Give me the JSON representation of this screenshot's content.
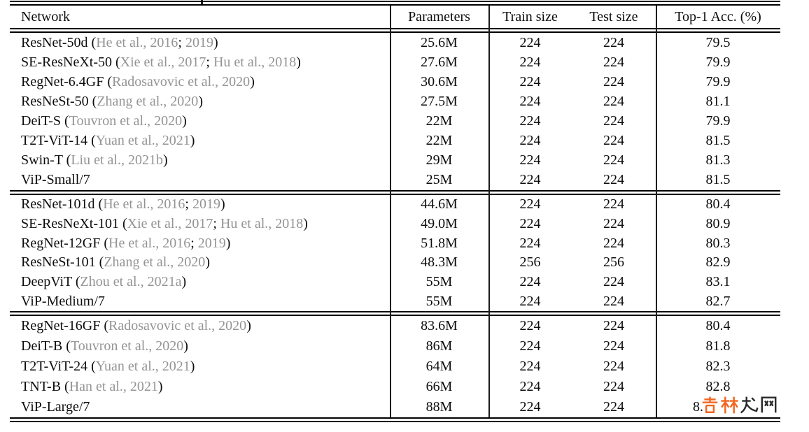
{
  "table": {
    "header": {
      "network": "Network",
      "parameters": "Parameters",
      "train": "Train size",
      "test": "Test size",
      "acc": "Top-1 Acc. (%)"
    },
    "groups": [
      {
        "rows": [
          {
            "name": "ResNet-50d",
            "citation": "He et al., 2016; 2019",
            "params": "25.6M",
            "train": "224",
            "test": "224",
            "acc": "79.5"
          },
          {
            "name": "SE-ResNeXt-50",
            "citation": "Xie et al., 2017; Hu et al., 2018",
            "params": "27.6M",
            "train": "224",
            "test": "224",
            "acc": "79.9"
          },
          {
            "name": "RegNet-6.4GF",
            "citation": "Radosavovic et al., 2020",
            "params": "30.6M",
            "train": "224",
            "test": "224",
            "acc": "79.9"
          },
          {
            "name": "ResNeSt-50",
            "citation": "Zhang et al., 2020",
            "params": "27.5M",
            "train": "224",
            "test": "224",
            "acc": "81.1"
          },
          {
            "name": "DeiT-S",
            "citation": "Touvron et al., 2020",
            "params": "22M",
            "train": "224",
            "test": "224",
            "acc": "79.9"
          },
          {
            "name": "T2T-ViT-14",
            "citation": "Yuan et al., 2021",
            "params": "22M",
            "train": "224",
            "test": "224",
            "acc": "81.5"
          },
          {
            "name": "Swin-T",
            "citation": "Liu et al., 2021b",
            "params": "29M",
            "train": "224",
            "test": "224",
            "acc": "81.3"
          },
          {
            "name": "ViP-Small/7",
            "citation": null,
            "params": "25M",
            "train": "224",
            "test": "224",
            "acc": "81.5"
          }
        ]
      },
      {
        "rows": [
          {
            "name": "ResNet-101d",
            "citation": "He et al., 2016; 2019",
            "params": "44.6M",
            "train": "224",
            "test": "224",
            "acc": "80.4"
          },
          {
            "name": "SE-ResNeXt-101",
            "citation": "Xie et al., 2017; Hu et al., 2018",
            "params": "49.0M",
            "train": "224",
            "test": "224",
            "acc": "80.9"
          },
          {
            "name": "RegNet-12GF",
            "citation": "He et al., 2016; 2019",
            "params": "51.8M",
            "train": "224",
            "test": "224",
            "acc": "80.3"
          },
          {
            "name": "ResNeSt-101",
            "citation": "Zhang et al., 2020",
            "params": "48.3M",
            "train": "256",
            "test": "256",
            "acc": "82.9"
          },
          {
            "name": "DeepViT",
            "citation": "Zhou et al., 2021a",
            "params": "55M",
            "train": "224",
            "test": "224",
            "acc": "83.1"
          },
          {
            "name": "ViP-Medium/7",
            "citation": null,
            "params": "55M",
            "train": "224",
            "test": "224",
            "acc": "82.7"
          }
        ]
      },
      {
        "rows": [
          {
            "name": "RegNet-16GF",
            "citation": "Radosavovic et al., 2020",
            "params": "83.6M",
            "train": "224",
            "test": "224",
            "acc": "80.4"
          },
          {
            "name": "DeiT-B",
            "citation": "Touvron et al., 2020",
            "params": "86M",
            "train": "224",
            "test": "224",
            "acc": "81.8"
          },
          {
            "name": "T2T-ViT-24",
            "citation": "Yuan et al., 2021",
            "params": "64M",
            "train": "224",
            "test": "224",
            "acc": "82.3"
          },
          {
            "name": "TNT-B",
            "citation": "Han et al., 2021",
            "params": "66M",
            "train": "224",
            "test": "224",
            "acc": "82.8"
          },
          {
            "name": "ViP-Large/7",
            "citation": null,
            "params": "88M",
            "train": "224",
            "test": "224",
            "acc": "8.",
            "acc_obscured": true
          }
        ]
      }
    ]
  },
  "watermark": {
    "orange_text": "吉林",
    "dark_text": "龙网",
    "orange_color": "#f2661f",
    "dark_color": "#2a2a2a"
  },
  "colors": {
    "text": "#0d0d0d",
    "citation_gray": "#949494",
    "rule_black": "#000000"
  }
}
